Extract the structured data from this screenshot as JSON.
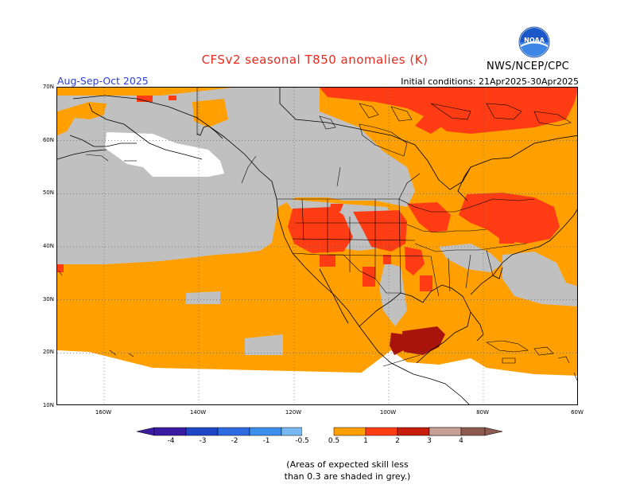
{
  "header": {
    "title": "CFSv2 seasonal T850 anomalies (K)",
    "period": "Aug-Sep-Oct 2025",
    "initial_conditions": "Initial conditions: 21Apr2025-30Apr2025",
    "agency": "NWS/NCEP/CPC"
  },
  "logo": {
    "icon": "noaa-logo",
    "text": "NOAA"
  },
  "map": {
    "region": "North America",
    "lat_labels": [
      "70N",
      "60N",
      "50N",
      "40N",
      "30N",
      "20N",
      "10N"
    ],
    "lon_labels": [
      "160W",
      "140W",
      "120W",
      "100W",
      "80W",
      "60W"
    ],
    "grid": "dotted"
  },
  "legend": {
    "labels": [
      "-4",
      "-3",
      "-2",
      "-1",
      "-0.5",
      "0.5",
      "1",
      "2",
      "3",
      "4"
    ],
    "colors": [
      "#3b1ca0",
      "#2046c8",
      "#2f6be0",
      "#3c90ec",
      "#79b9f2",
      "#ffffff",
      "#ffa000",
      "#ff3c14",
      "#c81c0c",
      "#8c0c08",
      "#c8a096",
      "#8c5a4e"
    ]
  },
  "footnote": {
    "line1": "(Areas of expected skill less",
    "line2": "than 0.3 are shaded in grey.)"
  }
}
